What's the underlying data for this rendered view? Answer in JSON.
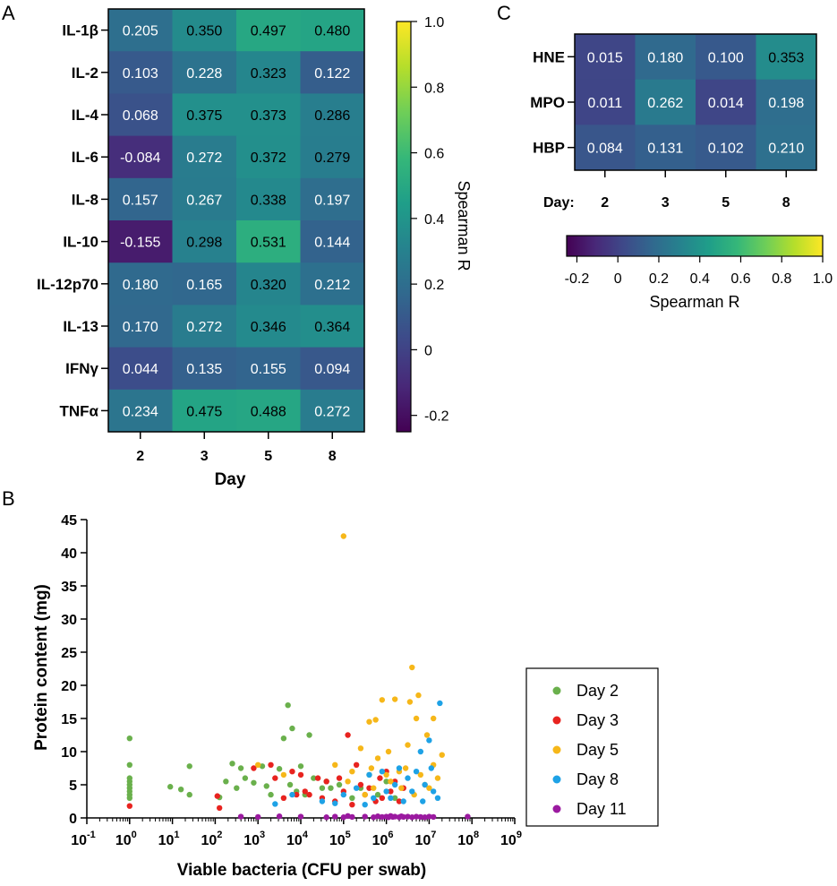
{
  "panel_labels": {
    "a": "A",
    "b": "B",
    "c": "C"
  },
  "colors": {
    "viridis": [
      "#440154",
      "#482878",
      "#3e4989",
      "#31688e",
      "#26828e",
      "#1f9e89",
      "#35b779",
      "#6ece58",
      "#b5de2b",
      "#fde725"
    ],
    "day2": "#6ab04c",
    "day3": "#e8231f",
    "day5": "#f6b719",
    "day8": "#1ea2e6",
    "day11": "#9b1aa0"
  },
  "chart_data": [
    {
      "type": "heatmap",
      "panel": "A",
      "xlabel": "Day",
      "columns": [
        "2",
        "3",
        "5",
        "8"
      ],
      "rows": [
        "IL-1β",
        "IL-2",
        "IL-4",
        "IL-6",
        "IL-8",
        "IL-10",
        "IL-12p70",
        "IL-13",
        "IFNγ",
        "TNFα"
      ],
      "values": [
        [
          0.205,
          0.35,
          0.497,
          0.48
        ],
        [
          0.103,
          0.228,
          0.323,
          0.122
        ],
        [
          0.068,
          0.375,
          0.373,
          0.286
        ],
        [
          -0.084,
          0.272,
          0.372,
          0.279
        ],
        [
          0.157,
          0.267,
          0.338,
          0.197
        ],
        [
          -0.155,
          0.298,
          0.531,
          0.144
        ],
        [
          0.18,
          0.165,
          0.32,
          0.212
        ],
        [
          0.17,
          0.272,
          0.346,
          0.364
        ],
        [
          0.044,
          0.135,
          0.155,
          0.094
        ],
        [
          0.234,
          0.475,
          0.488,
          0.272
        ]
      ],
      "labels": [
        [
          "0.205",
          "0.350",
          "0.497",
          "0.480"
        ],
        [
          "0.103",
          "0.228",
          "0.323",
          "0.122"
        ],
        [
          "0.068",
          "0.375",
          "0.373",
          "0.286"
        ],
        [
          "-0.084",
          "0.272",
          "0.372",
          "0.279"
        ],
        [
          "0.157",
          "0.267",
          "0.338",
          "0.197"
        ],
        [
          "-0.155",
          "0.298",
          "0.531",
          "0.144"
        ],
        [
          "0.180",
          "0.165",
          "0.320",
          "0.212"
        ],
        [
          "0.170",
          "0.272",
          "0.346",
          "0.364"
        ],
        [
          "0.044",
          "0.135",
          "0.155",
          "0.094"
        ],
        [
          "0.234",
          "0.475",
          "0.488",
          "0.272"
        ]
      ],
      "colorbar": {
        "title": "Spearman R",
        "orientation": "vertical",
        "range": [
          -0.25,
          1.0
        ],
        "ticks": [
          1.0,
          0.8,
          0.6,
          0.4,
          0.2,
          0,
          -0.2
        ],
        "tick_labels": [
          "1.0",
          "0.8",
          "0.6",
          "0.4",
          "0.2",
          "0",
          "-0.2"
        ]
      }
    },
    {
      "type": "scatter",
      "panel": "B",
      "xlabel": "Viable bacteria (CFU per swab)",
      "ylabel": "Protein content (mg)",
      "xscale": "log",
      "xlim_log10": [
        -1,
        9
      ],
      "ylim": [
        0,
        45
      ],
      "xticks_log10": [
        -1,
        0,
        1,
        2,
        3,
        4,
        5,
        6,
        7,
        8,
        9
      ],
      "yticks": [
        0,
        5,
        10,
        15,
        20,
        25,
        30,
        35,
        40,
        45
      ],
      "legend_position": "right",
      "series": [
        {
          "name": "Day 2",
          "color_key": "day2",
          "points_log10x_y": [
            [
              0,
              12
            ],
            [
              0,
              8
            ],
            [
              0,
              6
            ],
            [
              0,
              5.5
            ],
            [
              0,
              5
            ],
            [
              0,
              4.5
            ],
            [
              0,
              4
            ],
            [
              0,
              3.5
            ],
            [
              0,
              3
            ],
            [
              0.95,
              4.7
            ],
            [
              1.2,
              4.3
            ],
            [
              1.4,
              3.5
            ],
            [
              1.4,
              7.8
            ],
            [
              2.1,
              3.1
            ],
            [
              2.25,
              5.5
            ],
            [
              2.4,
              8.2
            ],
            [
              2.5,
              4.5
            ],
            [
              2.6,
              7.5
            ],
            [
              2.7,
              6
            ],
            [
              2.9,
              5.3
            ],
            [
              3.1,
              7.8
            ],
            [
              3.2,
              4.8
            ],
            [
              3.3,
              3.5
            ],
            [
              3.5,
              7.4
            ],
            [
              3.6,
              12
            ],
            [
              3.7,
              17
            ],
            [
              3.75,
              5
            ],
            [
              3.8,
              13.5
            ],
            [
              3.9,
              4
            ],
            [
              4.0,
              7.8
            ],
            [
              4.1,
              3.5
            ],
            [
              4.2,
              12.5
            ],
            [
              4.3,
              6
            ],
            [
              4.5,
              4.5
            ],
            [
              4.6,
              5.5
            ],
            [
              4.7,
              4.5
            ],
            [
              4.9,
              5
            ],
            [
              5.2,
              3
            ],
            [
              5.4,
              4.5
            ],
            [
              5.6,
              6.5
            ],
            [
              5.8,
              3.5
            ],
            [
              6.0,
              5.5
            ],
            [
              6.2,
              3
            ]
          ]
        },
        {
          "name": "Day 3",
          "color_key": "day3",
          "points_log10x_y": [
            [
              0,
              1.8
            ],
            [
              2.05,
              3.3
            ],
            [
              2.1,
              1.5
            ],
            [
              2.9,
              7.5
            ],
            [
              3.3,
              8
            ],
            [
              3.4,
              6
            ],
            [
              3.6,
              3
            ],
            [
              3.8,
              7
            ],
            [
              3.9,
              3.5
            ],
            [
              4.0,
              6.5
            ],
            [
              4.1,
              4
            ],
            [
              4.2,
              3.5
            ],
            [
              4.4,
              6
            ],
            [
              4.5,
              3
            ],
            [
              4.6,
              5.5
            ],
            [
              4.8,
              2.5
            ],
            [
              4.9,
              6
            ],
            [
              5.0,
              4
            ],
            [
              5.1,
              12.5
            ],
            [
              5.2,
              2
            ],
            [
              5.3,
              8
            ],
            [
              5.4,
              5
            ],
            [
              5.5,
              3.5
            ],
            [
              5.6,
              4.5
            ],
            [
              5.75,
              2.5
            ],
            [
              5.85,
              6
            ],
            [
              5.9,
              3
            ],
            [
              6.0,
              7
            ],
            [
              6.1,
              4
            ],
            [
              6.2,
              5.5
            ],
            [
              6.3,
              2.5
            ],
            [
              6.4,
              4.5
            ]
          ]
        },
        {
          "name": "Day 5",
          "color_key": "day5",
          "points_log10x_y": [
            [
              3.0,
              8
            ],
            [
              3.6,
              6.5
            ],
            [
              4.8,
              8
            ],
            [
              5.0,
              42.5
            ],
            [
              5.1,
              5.5
            ],
            [
              5.2,
              7
            ],
            [
              5.4,
              10.5
            ],
            [
              5.5,
              3.5
            ],
            [
              5.6,
              14.5
            ],
            [
              5.65,
              7.5
            ],
            [
              5.7,
              4.5
            ],
            [
              5.75,
              14.8
            ],
            [
              5.8,
              9
            ],
            [
              5.9,
              17.8
            ],
            [
              6.0,
              6.5
            ],
            [
              6.05,
              10
            ],
            [
              6.1,
              5.5
            ],
            [
              6.2,
              17.9
            ],
            [
              6.3,
              7
            ],
            [
              6.35,
              4.5
            ],
            [
              6.45,
              7.5
            ],
            [
              6.5,
              11
            ],
            [
              6.55,
              17.5
            ],
            [
              6.6,
              22.7
            ],
            [
              6.65,
              3.5
            ],
            [
              6.7,
              15
            ],
            [
              6.75,
              18.5
            ],
            [
              6.8,
              6.5
            ],
            [
              6.9,
              5
            ],
            [
              6.95,
              12.5
            ],
            [
              7.0,
              4.5
            ],
            [
              7.1,
              8
            ],
            [
              7.2,
              6
            ],
            [
              7.3,
              9.5
            ],
            [
              7.1,
              15
            ]
          ]
        },
        {
          "name": "Day 8",
          "color_key": "day8",
          "points_log10x_y": [
            [
              3.4,
              2.1
            ],
            [
              3.8,
              3.5
            ],
            [
              4.5,
              2.5
            ],
            [
              4.8,
              2.2
            ],
            [
              5.0,
              3.5
            ],
            [
              5.3,
              4.5
            ],
            [
              5.5,
              2
            ],
            [
              5.6,
              6.5
            ],
            [
              5.7,
              3
            ],
            [
              5.9,
              7
            ],
            [
              6.0,
              4
            ],
            [
              6.1,
              3
            ],
            [
              6.2,
              5
            ],
            [
              6.3,
              7.5
            ],
            [
              6.4,
              2.5
            ],
            [
              6.5,
              6
            ],
            [
              6.6,
              4
            ],
            [
              6.7,
              7
            ],
            [
              6.8,
              10
            ],
            [
              6.85,
              2.5
            ],
            [
              6.9,
              5
            ],
            [
              7.0,
              11.7
            ],
            [
              7.05,
              7.5
            ],
            [
              7.1,
              4
            ],
            [
              7.2,
              3
            ],
            [
              7.25,
              17.3
            ]
          ]
        },
        {
          "name": "Day 11",
          "color_key": "day11",
          "points_log10x_y": [
            [
              2.6,
              0.2
            ],
            [
              3.0,
              0.15
            ],
            [
              3.5,
              0.25
            ],
            [
              4.0,
              0.2
            ],
            [
              4.6,
              0.1
            ],
            [
              4.8,
              0.2
            ],
            [
              5.0,
              0.1
            ],
            [
              5.1,
              0.3
            ],
            [
              5.2,
              0.15
            ],
            [
              5.5,
              0.2
            ],
            [
              5.7,
              0.1
            ],
            [
              5.8,
              0.25
            ],
            [
              5.9,
              0.15
            ],
            [
              6.0,
              0.2
            ],
            [
              6.05,
              0.1
            ],
            [
              6.1,
              0.3
            ],
            [
              6.15,
              0.15
            ],
            [
              6.2,
              0.2
            ],
            [
              6.3,
              0.1
            ],
            [
              6.35,
              0.25
            ],
            [
              6.4,
              0.15
            ],
            [
              6.5,
              0.2
            ],
            [
              6.6,
              0.1
            ],
            [
              6.7,
              0.2
            ],
            [
              6.8,
              0.15
            ],
            [
              6.9,
              0.1
            ],
            [
              7.0,
              0.2
            ],
            [
              7.1,
              0.15
            ],
            [
              7.9,
              0.2
            ]
          ]
        }
      ]
    },
    {
      "type": "heatmap",
      "panel": "C",
      "xlabel": "Day:",
      "columns": [
        "2",
        "3",
        "5",
        "8"
      ],
      "rows": [
        "HNE",
        "MPO",
        "HBP"
      ],
      "values": [
        [
          0.015,
          0.18,
          0.1,
          0.353
        ],
        [
          0.011,
          0.262,
          0.014,
          0.198
        ],
        [
          0.084,
          0.131,
          0.102,
          0.21
        ]
      ],
      "labels": [
        [
          "0.015",
          "0.180",
          "0.100",
          "0.353"
        ],
        [
          "0.011",
          "0.262",
          "0.014",
          "0.198"
        ],
        [
          "0.084",
          "0.131",
          "0.102",
          "0.210"
        ]
      ],
      "colorbar": {
        "title": "Spearman R",
        "orientation": "horizontal",
        "range": [
          -0.25,
          1.0
        ],
        "ticks": [
          -0.2,
          0,
          0.2,
          0.4,
          0.6,
          0.8,
          1.0
        ],
        "tick_labels": [
          "-0.2",
          "0",
          "0.2",
          "0.4",
          "0.6",
          "0.8",
          "1.0"
        ]
      }
    }
  ]
}
